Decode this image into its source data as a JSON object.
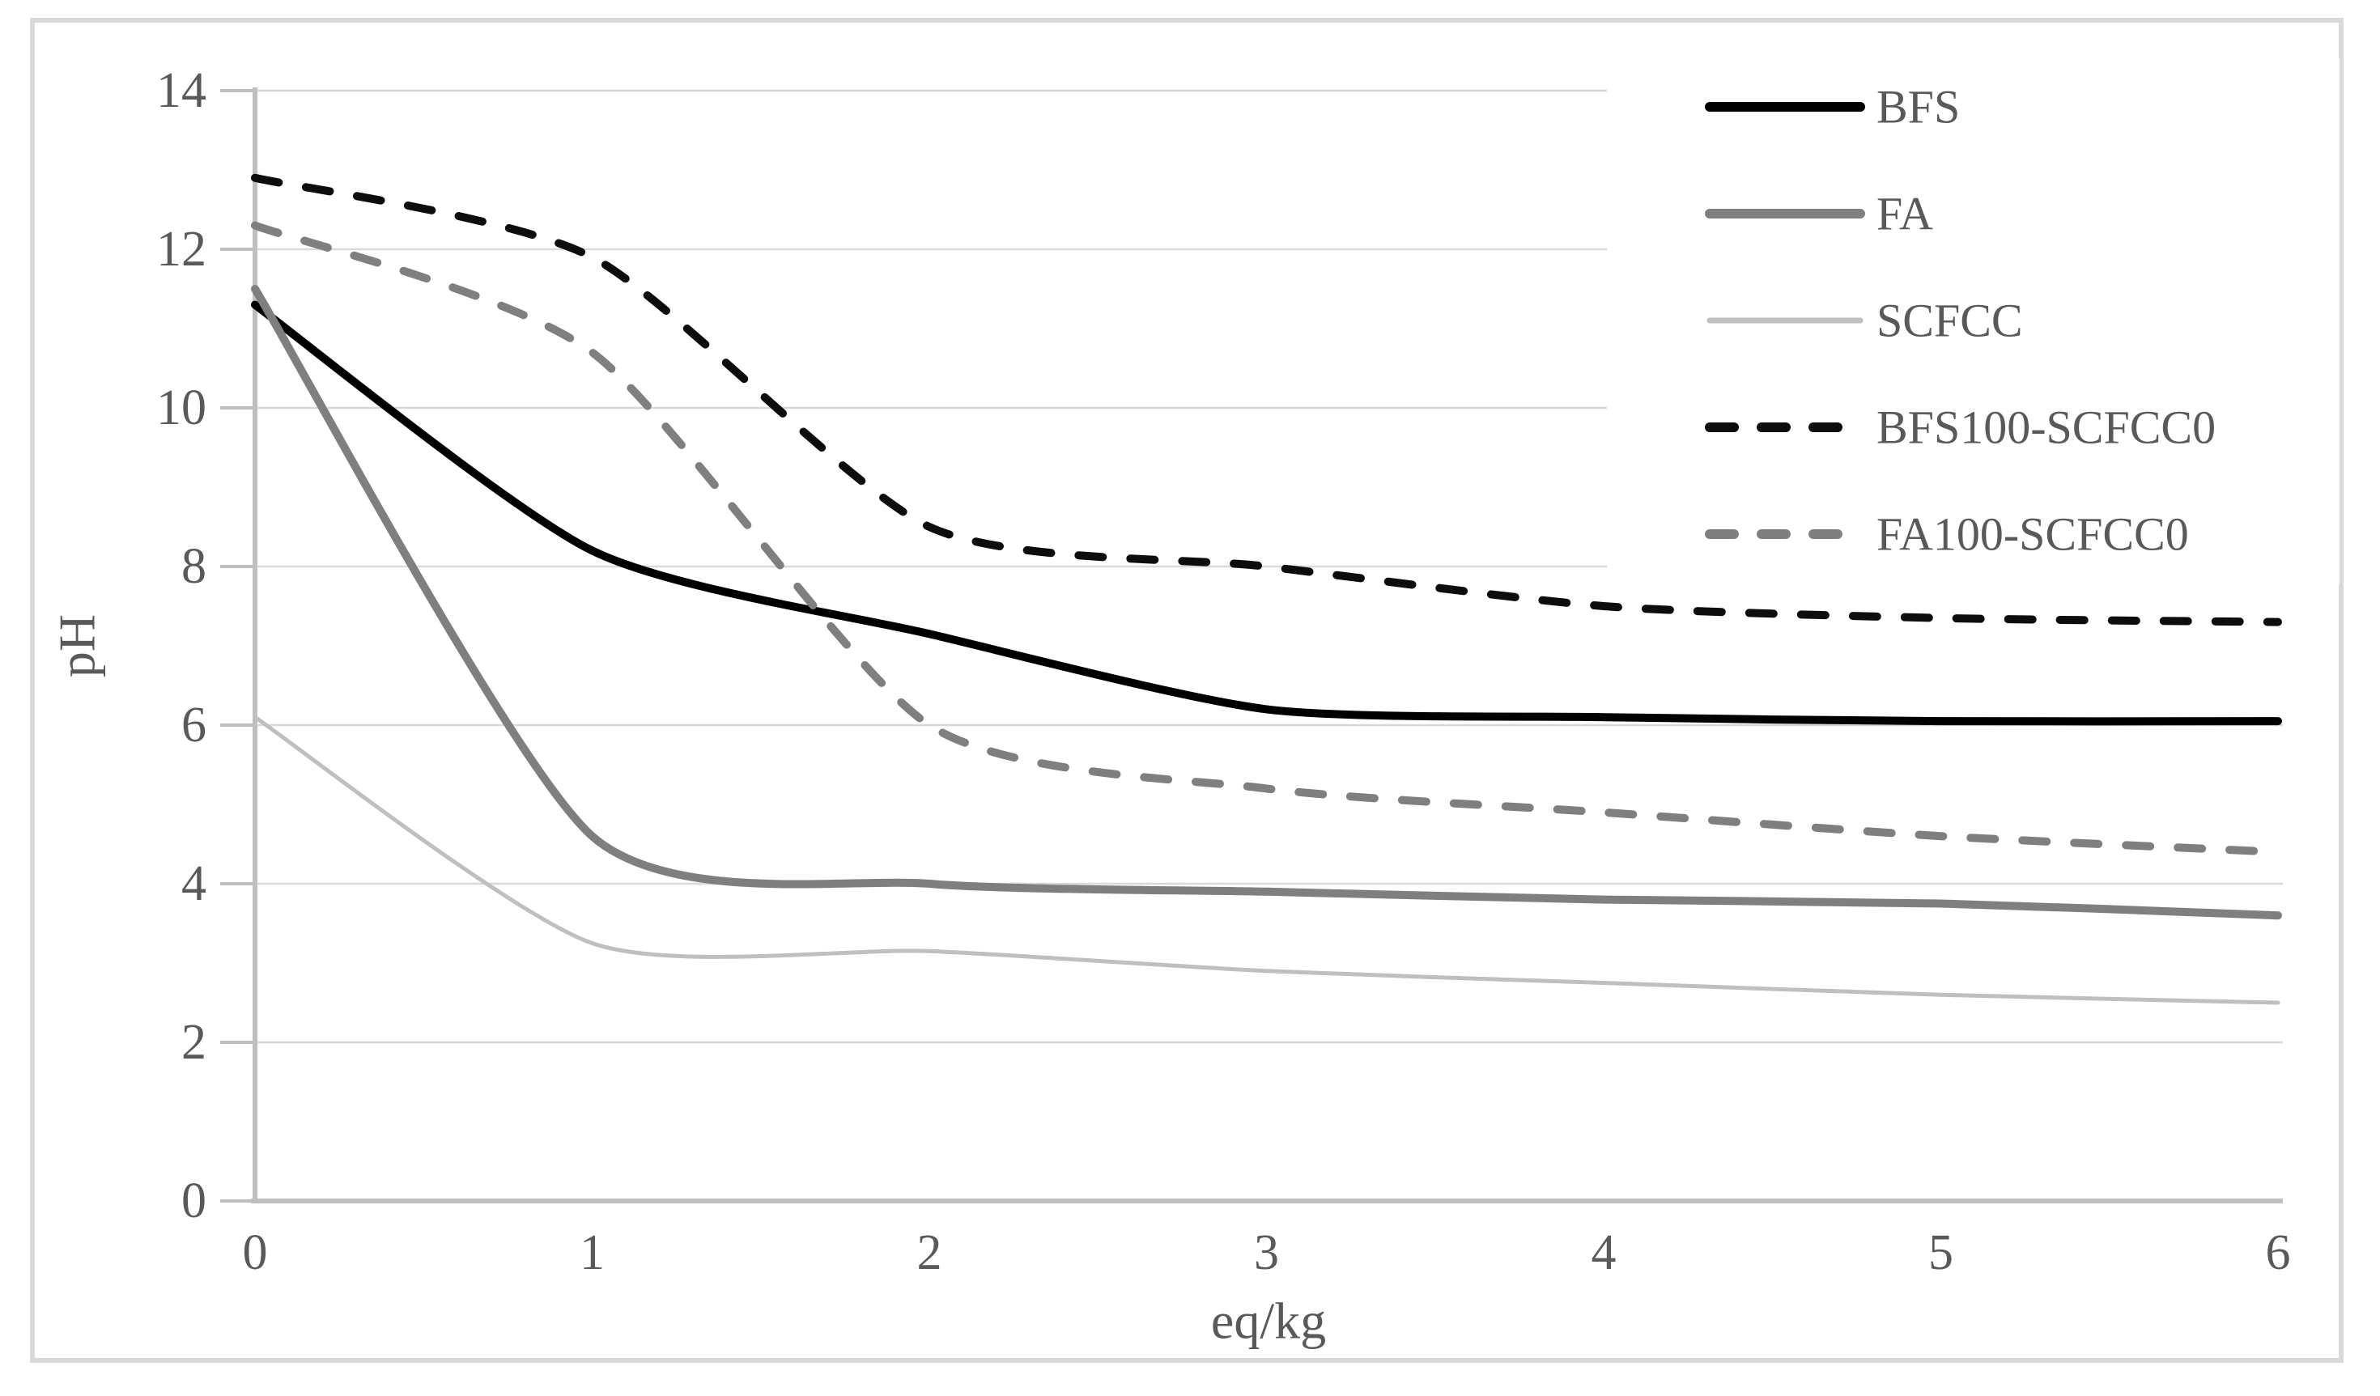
{
  "figure": {
    "background": "#ffffff",
    "border_color": "#d9d9d9"
  },
  "chart_data": {
    "type": "line",
    "title": "",
    "xlabel": "eq/kg",
    "ylabel": "pH",
    "x": [
      0,
      1,
      2,
      3,
      4,
      5,
      6
    ],
    "xticks": [
      0,
      1,
      2,
      3,
      4,
      5,
      6
    ],
    "yticks": [
      0,
      2,
      4,
      6,
      8,
      10,
      12,
      14
    ],
    "xlim": [
      0,
      6
    ],
    "ylim": [
      0,
      14
    ],
    "grid": "horizontal",
    "legend_position": "top-right",
    "grid_color": "#d9d9d9",
    "axis_color": "#bfbfbf",
    "text_color": "#595959",
    "series": [
      {
        "name": "BFS",
        "color": "#000000",
        "dash": "solid",
        "width": 10,
        "values": [
          11.3,
          8.2,
          7.15,
          6.2,
          6.1,
          6.05,
          6.05
        ]
      },
      {
        "name": "FA",
        "color": "#7f7f7f",
        "dash": "solid",
        "width": 10,
        "values": [
          11.5,
          4.6,
          4.0,
          3.9,
          3.8,
          3.75,
          3.6
        ]
      },
      {
        "name": "SCFCC",
        "color": "#bfbfbf",
        "dash": "solid",
        "width": 5,
        "values": [
          6.1,
          3.25,
          3.15,
          2.9,
          2.75,
          2.6,
          2.5
        ]
      },
      {
        "name": "BFS100-SCFCC0",
        "color": "#0d0d0d",
        "dash": "dashed",
        "width": 10,
        "values": [
          12.9,
          11.9,
          8.5,
          8.0,
          7.5,
          7.35,
          7.3
        ]
      },
      {
        "name": "FA100-SCFCC0",
        "color": "#7f7f7f",
        "dash": "dashed",
        "width": 10,
        "values": [
          12.3,
          10.7,
          6.0,
          5.2,
          4.9,
          4.6,
          4.4
        ]
      }
    ]
  }
}
